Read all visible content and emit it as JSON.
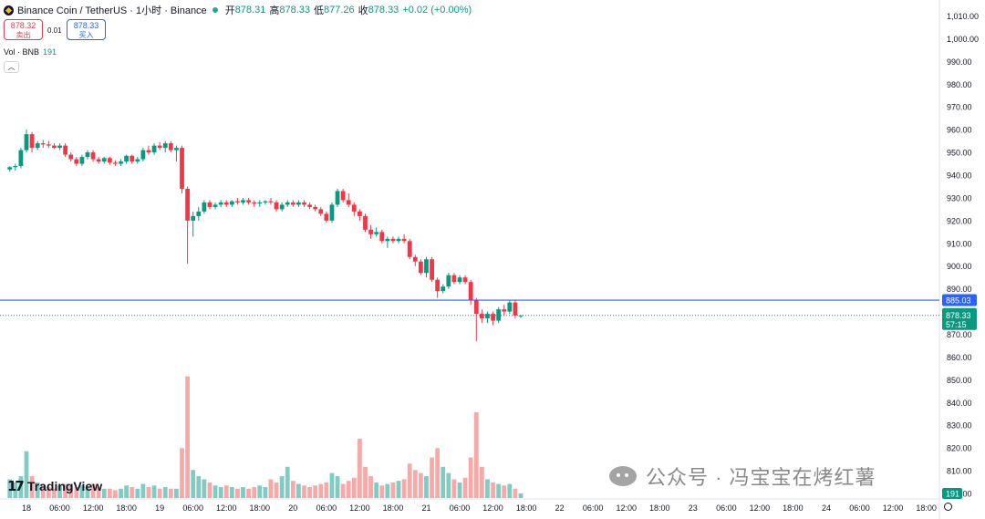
{
  "header": {
    "symbol": "Binance Coin / TetherUS · 1小时 · Binance",
    "open_label": "开",
    "open": "878.31",
    "high_label": "高",
    "high": "878.33",
    "low_label": "低",
    "low": "877.26",
    "close_label": "收",
    "close": "878.33",
    "change": "+0.02 (+0.00%)"
  },
  "trade": {
    "sell_price": "878.32",
    "sell_label": "卖出",
    "spread": "0.01",
    "buy_price": "878.33",
    "buy_label": "买入"
  },
  "volume_legend": {
    "label": "Vol · BNB",
    "value": "191"
  },
  "branding": {
    "logo_mark": "17",
    "logo_text": "TradingView"
  },
  "watermark": {
    "text": "公众号 · 冯宝宝在烤红薯"
  },
  "colors": {
    "up": "#089981",
    "down": "#f23645",
    "line": "#2962ff",
    "vol_up": "#80cbc4",
    "vol_down": "#f7a9a7"
  },
  "chart_data": {
    "type": "candlestick",
    "symbol": "BNB/USDT",
    "interval": "1小时",
    "y_ticks": [
      "1,010.00",
      "1,000.00",
      "990.00",
      "980.00",
      "970.00",
      "960.00",
      "950.00",
      "940.00",
      "930.00",
      "920.00",
      "910.00",
      "900.00",
      "890.00",
      "880.00",
      "870.00",
      "860.00",
      "850.00",
      "840.00",
      "830.00",
      "820.00",
      "810.00",
      "800.00"
    ],
    "ylim": [
      797,
      1014
    ],
    "x_ticks": [
      "18",
      "06:00",
      "12:00",
      "18:00",
      "19",
      "06:00",
      "12:00",
      "18:00",
      "20",
      "06:00",
      "12:00",
      "18:00",
      "21",
      "06:00",
      "12:00",
      "18:00",
      "22",
      "06:00",
      "12:00",
      "18:00",
      "23",
      "06:00",
      "12:00",
      "18:00",
      "24",
      "06:00",
      "12:00",
      "18:00"
    ],
    "x_tick_hours": [
      0,
      6,
      12,
      18,
      24,
      30,
      36,
      42,
      48,
      54,
      60,
      66,
      72,
      78,
      84,
      90,
      96,
      102,
      108,
      114,
      120,
      126,
      132,
      138,
      144,
      150,
      156,
      162
    ],
    "horizontal_line": {
      "value": 885.03,
      "label": "885.03"
    },
    "last_price": {
      "value": 878.33,
      "label": "878.33",
      "countdown": "57:15"
    },
    "last_volume_label": "191",
    "candles": [
      {
        "t": -3,
        "o": 942.5,
        "h": 944,
        "l": 941.5,
        "c": 943.5,
        "v": 12
      },
      {
        "t": -2,
        "o": 943.5,
        "h": 945,
        "l": 942,
        "c": 944,
        "v": 10
      },
      {
        "t": -1,
        "o": 944,
        "h": 952,
        "l": 943,
        "c": 951,
        "v": 14
      },
      {
        "t": 0,
        "o": 951,
        "h": 960,
        "l": 950,
        "c": 958,
        "v": 30
      },
      {
        "t": 1,
        "o": 958,
        "h": 959,
        "l": 950,
        "c": 952,
        "v": 14
      },
      {
        "t": 2,
        "o": 952,
        "h": 955,
        "l": 951,
        "c": 954,
        "v": 10
      },
      {
        "t": 3,
        "o": 954,
        "h": 955.5,
        "l": 952,
        "c": 953.5,
        "v": 8
      },
      {
        "t": 4,
        "o": 953.5,
        "h": 955,
        "l": 952,
        "c": 953,
        "v": 7
      },
      {
        "t": 5,
        "o": 953,
        "h": 954,
        "l": 951.5,
        "c": 952,
        "v": 6
      },
      {
        "t": 6,
        "o": 952,
        "h": 954,
        "l": 951,
        "c": 953,
        "v": 8
      },
      {
        "t": 7,
        "o": 953,
        "h": 954,
        "l": 948,
        "c": 949,
        "v": 9
      },
      {
        "t": 8,
        "o": 949,
        "h": 950,
        "l": 946,
        "c": 947,
        "v": 8
      },
      {
        "t": 9,
        "o": 947,
        "h": 948,
        "l": 944,
        "c": 945,
        "v": 7
      },
      {
        "t": 10,
        "o": 945,
        "h": 949,
        "l": 944,
        "c": 948,
        "v": 8
      },
      {
        "t": 11,
        "o": 948,
        "h": 951,
        "l": 947,
        "c": 950,
        "v": 7
      },
      {
        "t": 12,
        "o": 950,
        "h": 951,
        "l": 946,
        "c": 947,
        "v": 9
      },
      {
        "t": 13,
        "o": 947,
        "h": 948,
        "l": 945,
        "c": 946,
        "v": 7
      },
      {
        "t": 14,
        "o": 946,
        "h": 948,
        "l": 945,
        "c": 947.5,
        "v": 6
      },
      {
        "t": 15,
        "o": 947.5,
        "h": 948,
        "l": 944.5,
        "c": 945.5,
        "v": 6
      },
      {
        "t": 16,
        "o": 945.5,
        "h": 946.5,
        "l": 944,
        "c": 945,
        "v": 5
      },
      {
        "t": 17,
        "o": 945,
        "h": 947,
        "l": 944,
        "c": 946,
        "v": 6
      },
      {
        "t": 18,
        "o": 946,
        "h": 949,
        "l": 945,
        "c": 948.5,
        "v": 8
      },
      {
        "t": 19,
        "o": 948.5,
        "h": 949,
        "l": 945,
        "c": 946,
        "v": 7
      },
      {
        "t": 20,
        "o": 946,
        "h": 948,
        "l": 945,
        "c": 947,
        "v": 6
      },
      {
        "t": 21,
        "o": 947,
        "h": 952,
        "l": 946,
        "c": 951,
        "v": 9
      },
      {
        "t": 22,
        "o": 951,
        "h": 953,
        "l": 949,
        "c": 950,
        "v": 7
      },
      {
        "t": 23,
        "o": 950,
        "h": 954,
        "l": 949,
        "c": 953,
        "v": 8
      },
      {
        "t": 24,
        "o": 953,
        "h": 954.5,
        "l": 951,
        "c": 952,
        "v": 6
      },
      {
        "t": 25,
        "o": 952,
        "h": 955,
        "l": 950,
        "c": 954,
        "v": 7
      },
      {
        "t": 26,
        "o": 954,
        "h": 955,
        "l": 950,
        "c": 951,
        "v": 6
      },
      {
        "t": 27,
        "o": 951,
        "h": 953,
        "l": 946,
        "c": 952,
        "v": 6
      },
      {
        "t": 28,
        "o": 952,
        "h": 953,
        "l": 932,
        "c": 934,
        "v": 32
      },
      {
        "t": 29,
        "o": 934,
        "h": 935,
        "l": 901,
        "c": 920,
        "v": 78
      },
      {
        "t": 30,
        "o": 920,
        "h": 924,
        "l": 913,
        "c": 922,
        "v": 18
      },
      {
        "t": 31,
        "o": 922,
        "h": 926,
        "l": 920,
        "c": 924,
        "v": 14
      },
      {
        "t": 32,
        "o": 924,
        "h": 929,
        "l": 923,
        "c": 928,
        "v": 12
      },
      {
        "t": 33,
        "o": 928,
        "h": 929,
        "l": 925,
        "c": 926,
        "v": 10
      },
      {
        "t": 34,
        "o": 926,
        "h": 928,
        "l": 925,
        "c": 927,
        "v": 8
      },
      {
        "t": 35,
        "o": 927,
        "h": 929,
        "l": 926,
        "c": 928,
        "v": 7
      },
      {
        "t": 36,
        "o": 928,
        "h": 929,
        "l": 926,
        "c": 927,
        "v": 8
      },
      {
        "t": 37,
        "o": 927,
        "h": 929,
        "l": 926,
        "c": 928.5,
        "v": 7
      },
      {
        "t": 38,
        "o": 928.5,
        "h": 930,
        "l": 927,
        "c": 928,
        "v": 6
      },
      {
        "t": 39,
        "o": 928,
        "h": 930,
        "l": 927,
        "c": 929,
        "v": 7
      },
      {
        "t": 40,
        "o": 929,
        "h": 930,
        "l": 927,
        "c": 928,
        "v": 6
      },
      {
        "t": 41,
        "o": 928,
        "h": 929,
        "l": 926,
        "c": 927.5,
        "v": 7
      },
      {
        "t": 42,
        "o": 927.5,
        "h": 929,
        "l": 926,
        "c": 928,
        "v": 8
      },
      {
        "t": 43,
        "o": 928,
        "h": 929,
        "l": 927,
        "c": 928.5,
        "v": 7
      },
      {
        "t": 44,
        "o": 928.5,
        "h": 930,
        "l": 927,
        "c": 928,
        "v": 12
      },
      {
        "t": 45,
        "o": 928,
        "h": 929,
        "l": 924,
        "c": 925,
        "v": 10
      },
      {
        "t": 46,
        "o": 925,
        "h": 928,
        "l": 924,
        "c": 927,
        "v": 14
      },
      {
        "t": 47,
        "o": 927,
        "h": 929,
        "l": 926,
        "c": 928,
        "v": 20
      },
      {
        "t": 48,
        "o": 928,
        "h": 929,
        "l": 926,
        "c": 927,
        "v": 11
      },
      {
        "t": 49,
        "o": 927,
        "h": 929,
        "l": 926,
        "c": 928,
        "v": 9
      },
      {
        "t": 50,
        "o": 928,
        "h": 929,
        "l": 926,
        "c": 927,
        "v": 8
      },
      {
        "t": 51,
        "o": 927,
        "h": 928,
        "l": 925,
        "c": 926,
        "v": 7
      },
      {
        "t": 52,
        "o": 926,
        "h": 927,
        "l": 924,
        "c": 925,
        "v": 8
      },
      {
        "t": 53,
        "o": 925,
        "h": 926,
        "l": 922,
        "c": 923,
        "v": 9
      },
      {
        "t": 54,
        "o": 923,
        "h": 924,
        "l": 919,
        "c": 920,
        "v": 10
      },
      {
        "t": 55,
        "o": 920,
        "h": 928,
        "l": 919,
        "c": 927,
        "v": 16
      },
      {
        "t": 56,
        "o": 927,
        "h": 934,
        "l": 926,
        "c": 933,
        "v": 14
      },
      {
        "t": 57,
        "o": 933,
        "h": 934,
        "l": 928,
        "c": 929,
        "v": 9
      },
      {
        "t": 58,
        "o": 929,
        "h": 932,
        "l": 926,
        "c": 927,
        "v": 11
      },
      {
        "t": 59,
        "o": 927,
        "h": 928,
        "l": 922,
        "c": 924,
        "v": 13
      },
      {
        "t": 60,
        "o": 924,
        "h": 925,
        "l": 920,
        "c": 922,
        "v": 38
      },
      {
        "t": 61,
        "o": 922,
        "h": 923,
        "l": 915,
        "c": 916,
        "v": 20
      },
      {
        "t": 62,
        "o": 916,
        "h": 918,
        "l": 912,
        "c": 914,
        "v": 14
      },
      {
        "t": 63,
        "o": 914,
        "h": 917,
        "l": 913,
        "c": 915,
        "v": 10
      },
      {
        "t": 64,
        "o": 915,
        "h": 916,
        "l": 910,
        "c": 911,
        "v": 8
      },
      {
        "t": 65,
        "o": 911,
        "h": 913,
        "l": 908,
        "c": 912,
        "v": 9
      },
      {
        "t": 66,
        "o": 912,
        "h": 913,
        "l": 910,
        "c": 911,
        "v": 10
      },
      {
        "t": 67,
        "o": 911,
        "h": 913,
        "l": 910,
        "c": 912,
        "v": 11
      },
      {
        "t": 68,
        "o": 912,
        "h": 914,
        "l": 910,
        "c": 911,
        "v": 12
      },
      {
        "t": 69,
        "o": 911,
        "h": 912,
        "l": 903,
        "c": 904,
        "v": 22
      },
      {
        "t": 70,
        "o": 904,
        "h": 905,
        "l": 900,
        "c": 902,
        "v": 18
      },
      {
        "t": 71,
        "o": 902,
        "h": 903,
        "l": 896,
        "c": 897,
        "v": 16
      },
      {
        "t": 72,
        "o": 897,
        "h": 904,
        "l": 895,
        "c": 903,
        "v": 14
      },
      {
        "t": 73,
        "o": 903,
        "h": 904,
        "l": 893,
        "c": 894,
        "v": 26
      },
      {
        "t": 74,
        "o": 894,
        "h": 895,
        "l": 886,
        "c": 889,
        "v": 32
      },
      {
        "t": 75,
        "o": 889,
        "h": 892,
        "l": 888,
        "c": 891,
        "v": 20
      },
      {
        "t": 76,
        "o": 891,
        "h": 897,
        "l": 890,
        "c": 896,
        "v": 16
      },
      {
        "t": 77,
        "o": 896,
        "h": 897,
        "l": 892,
        "c": 893,
        "v": 12
      },
      {
        "t": 78,
        "o": 893,
        "h": 896,
        "l": 892,
        "c": 895,
        "v": 10
      },
      {
        "t": 79,
        "o": 895,
        "h": 896,
        "l": 892,
        "c": 893,
        "v": 13
      },
      {
        "t": 80,
        "o": 893,
        "h": 894,
        "l": 883,
        "c": 885,
        "v": 26
      },
      {
        "t": 81,
        "o": 885,
        "h": 886,
        "l": 867,
        "c": 879,
        "v": 55
      },
      {
        "t": 82,
        "o": 879,
        "h": 881,
        "l": 875,
        "c": 877,
        "v": 20
      },
      {
        "t": 83,
        "o": 877,
        "h": 880,
        "l": 875,
        "c": 879,
        "v": 12
      },
      {
        "t": 84,
        "o": 879,
        "h": 880,
        "l": 874,
        "c": 876,
        "v": 10
      },
      {
        "t": 85,
        "o": 876,
        "h": 882,
        "l": 875,
        "c": 881,
        "v": 9
      },
      {
        "t": 86,
        "o": 881,
        "h": 883,
        "l": 878,
        "c": 880,
        "v": 8
      },
      {
        "t": 87,
        "o": 880,
        "h": 885,
        "l": 879,
        "c": 884,
        "v": 9
      },
      {
        "t": 88,
        "o": 884,
        "h": 885,
        "l": 877,
        "c": 878.3,
        "v": 6
      },
      {
        "t": 89,
        "o": 878.31,
        "h": 878.33,
        "l": 877.26,
        "c": 878.33,
        "v": 3
      }
    ]
  }
}
